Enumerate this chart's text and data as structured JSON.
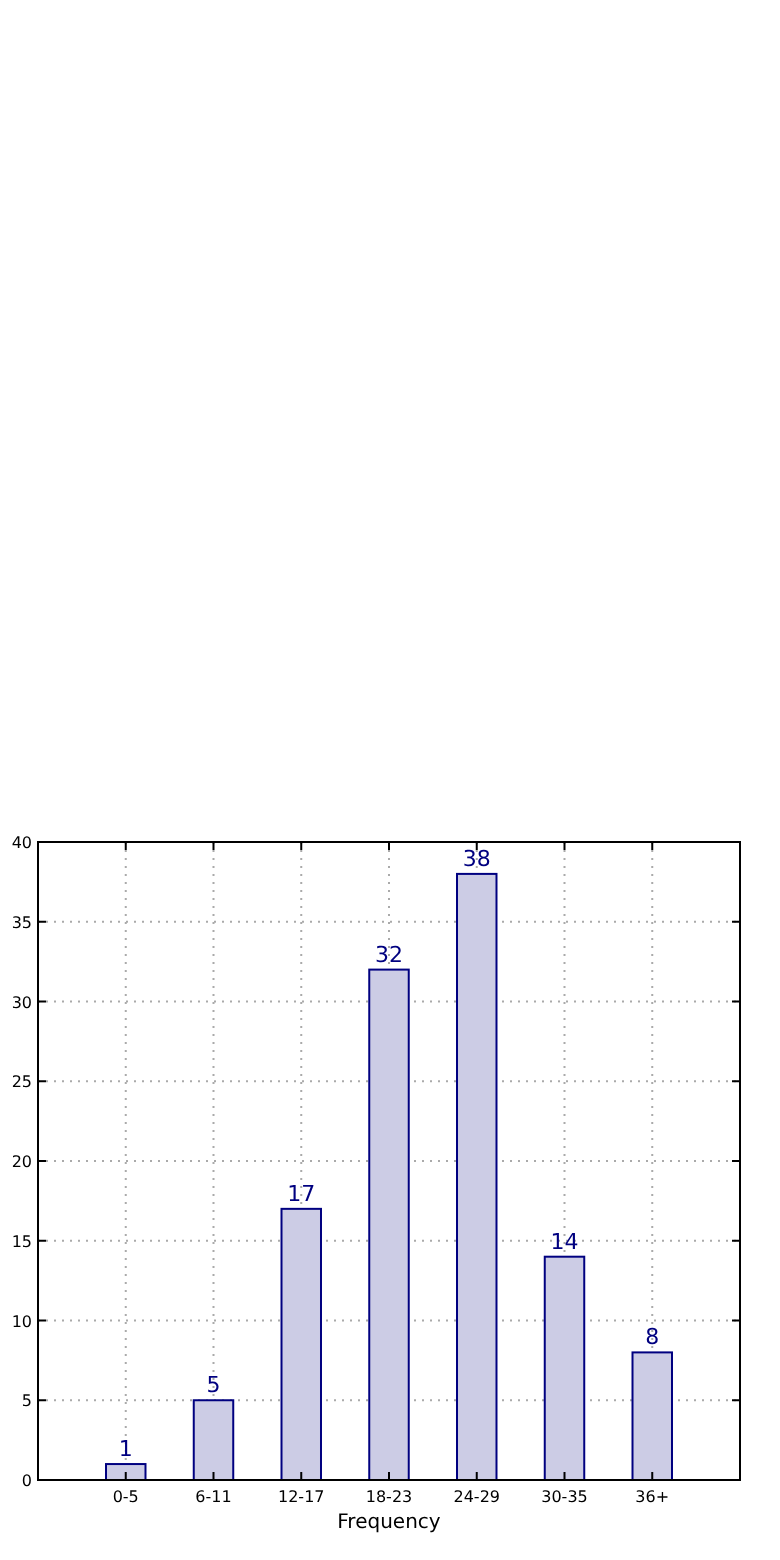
{
  "chart_data": {
    "type": "bar",
    "xlabel": "Frequency",
    "categories": [
      "0-5",
      "6-11",
      "12-17",
      "18-23",
      "24-29",
      "30-35",
      "36+"
    ],
    "values": [
      1,
      5,
      17,
      32,
      38,
      14,
      8
    ],
    "color": "#cccce5",
    "ylim": [
      0,
      40
    ],
    "yticks": [
      0,
      5,
      10,
      15,
      20,
      25,
      30,
      35,
      40
    ],
    "grid": true,
    "data_labels": true
  }
}
